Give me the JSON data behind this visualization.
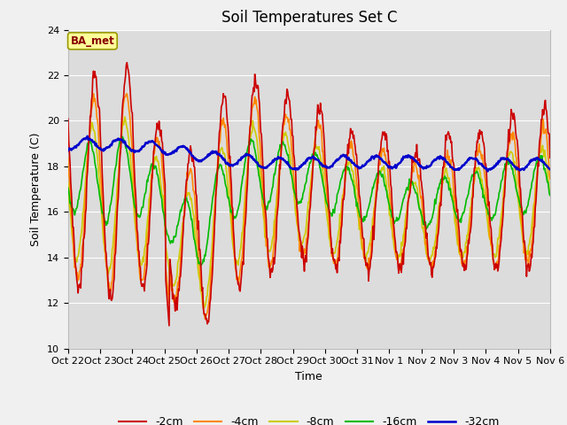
{
  "title": "Soil Temperatures Set C",
  "xlabel": "Time",
  "ylabel": "Soil Temperature (C)",
  "ylim": [
    10,
    24
  ],
  "yticks": [
    10,
    12,
    14,
    16,
    18,
    20,
    22,
    24
  ],
  "legend_labels": [
    "-2cm",
    "-4cm",
    "-8cm",
    "-16cm",
    "-32cm"
  ],
  "legend_colors": [
    "#cc0000",
    "#ff8800",
    "#cccc00",
    "#00bb00",
    "#0000cc"
  ],
  "line_widths": [
    1.2,
    1.2,
    1.2,
    1.2,
    1.8
  ],
  "background_color": "#dcdcdc",
  "fig_facecolor": "#f0f0f0",
  "annotation_text": "BA_met",
  "annotation_box_color": "#ffff99",
  "annotation_box_edge": "#999900",
  "annotation_text_color": "#880000",
  "tick_label_fontsize": 8,
  "title_fontsize": 12,
  "axis_label_fontsize": 9,
  "x_tick_labels": [
    "Oct 22",
    "Oct 23",
    "Oct 24",
    "Oct 25",
    "Oct 26",
    "Oct 27",
    "Oct 28",
    "Oct 29",
    "Oct 30",
    "Oct 31",
    "Nov 1",
    "Nov 2",
    "Nov 3",
    "Nov 4",
    "Nov 5",
    "Nov 6"
  ]
}
